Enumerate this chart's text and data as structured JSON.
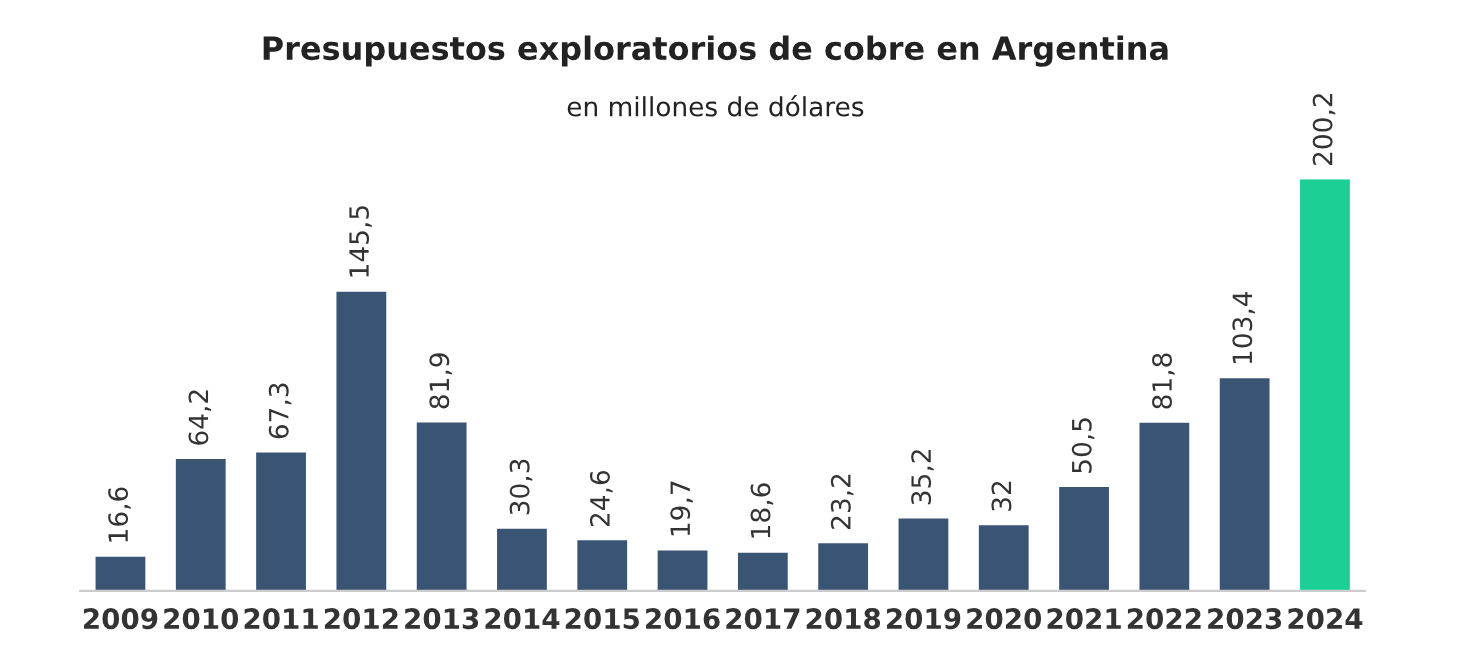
{
  "chart_data": {
    "type": "bar",
    "title": "Presupuestos exploratorios de cobre en Argentina",
    "subtitle": "en millones de dólares",
    "categories": [
      "2009",
      "2010",
      "2011",
      "2012",
      "2013",
      "2014",
      "2015",
      "2016",
      "2017",
      "2018",
      "2019",
      "2020",
      "2021",
      "2022",
      "2023",
      "2024"
    ],
    "values": [
      16.6,
      64.2,
      67.3,
      145.5,
      81.9,
      30.3,
      24.6,
      19.7,
      18.6,
      23.2,
      35.2,
      32,
      50.5,
      81.8,
      103.4,
      200.2
    ],
    "value_labels": [
      "16,6",
      "64,2",
      "67,3",
      "145,5",
      "81,9",
      "30,3",
      "24,6",
      "19,7",
      "18,6",
      "23,2",
      "35,2",
      "32",
      "50,5",
      "81,8",
      "103,4",
      "200,2"
    ],
    "colors": [
      "#3a5473",
      "#3a5473",
      "#3a5473",
      "#3a5473",
      "#3a5473",
      "#3a5473",
      "#3a5473",
      "#3a5473",
      "#3a5473",
      "#3a5473",
      "#3a5473",
      "#3a5473",
      "#3a5473",
      "#3a5473",
      "#3a5473",
      "#1ccf94"
    ],
    "grid": false,
    "legend": false
  }
}
